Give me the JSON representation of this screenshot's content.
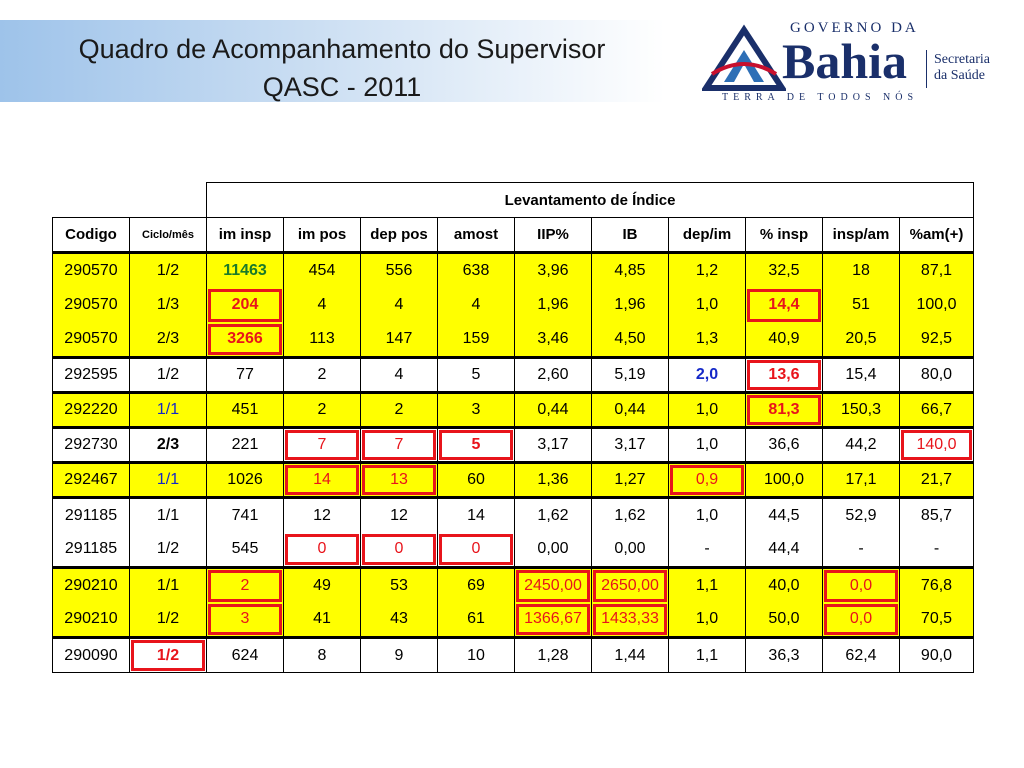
{
  "title": {
    "line1": "Quadro de Acompanhamento do Supervisor",
    "line2": "QASC - 2011"
  },
  "logo": {
    "top_text": "GOVERNO DA",
    "main_text": "Bahia",
    "tagline": "TERRA DE TODOS NÓS",
    "secretaria_line1": "Secretaria",
    "secretaria_line2": "da Saúde",
    "mark_icon": "bahia-triangle-mark-icon",
    "colors": {
      "navy": "#1a2f6a",
      "red": "#c8102e",
      "blue": "#2e6fb6"
    }
  },
  "table": {
    "group_header": "Levantamento de Índice",
    "columns": [
      "Codigo",
      "Ciclo/mês",
      "im insp",
      "im pos",
      "dep pos",
      "amost",
      "IIP%",
      "IB",
      "dep/im",
      "% insp",
      "insp/am",
      "%am(+)"
    ],
    "rows": [
      [
        "290570",
        "1/2",
        "11463",
        "454",
        "556",
        "638",
        "3,96",
        "4,85",
        "1,2",
        "32,5",
        "18",
        "87,1"
      ],
      [
        "290570",
        "1/3",
        "204",
        "4",
        "4",
        "4",
        "1,96",
        "1,96",
        "1,0",
        "14,4",
        "51",
        "100,0"
      ],
      [
        "290570",
        "2/3",
        "3266",
        "113",
        "147",
        "159",
        "3,46",
        "4,50",
        "1,3",
        "40,9",
        "20,5",
        "92,5"
      ],
      [
        "292595",
        "1/2",
        "77",
        "2",
        "4",
        "5",
        "2,60",
        "5,19",
        "2,0",
        "13,6",
        "15,4",
        "80,0"
      ],
      [
        "292220",
        "1/1",
        "451",
        "2",
        "2",
        "3",
        "0,44",
        "0,44",
        "1,0",
        "81,3",
        "150,3",
        "66,7"
      ],
      [
        "292730",
        "2/3",
        "221",
        "7",
        "7",
        "5",
        "3,17",
        "3,17",
        "1,0",
        "36,6",
        "44,2",
        "140,0"
      ],
      [
        "292467",
        "1/1",
        "1026",
        "14",
        "13",
        "60",
        "1,36",
        "1,27",
        "0,9",
        "100,0",
        "17,1",
        "21,7"
      ],
      [
        "291185",
        "1/1",
        "741",
        "12",
        "12",
        "14",
        "1,62",
        "1,62",
        "1,0",
        "44,5",
        "52,9",
        "85,7"
      ],
      [
        "291185",
        "1/2",
        "545",
        "0",
        "0",
        "0",
        "0,00",
        "0,00",
        "-",
        "44,4",
        "-",
        "-"
      ],
      [
        "290210",
        "1/1",
        "2",
        "49",
        "53",
        "69",
        "2450,00",
        "2650,00",
        "1,1",
        "40,0",
        "0,0",
        "76,8"
      ],
      [
        "290210",
        "1/2",
        "3",
        "41",
        "43",
        "61",
        "1366,67",
        "1433,33",
        "1,0",
        "50,0",
        "0,0",
        "70,5"
      ],
      [
        "290090",
        "1/2",
        "624",
        "8",
        "9",
        "10",
        "1,28",
        "1,44",
        "1,1",
        "36,3",
        "62,4",
        "90,0"
      ]
    ]
  },
  "colors": {
    "highlight_yellow": "#ffff00",
    "alert_red": "#e8141b",
    "value_green": "#1a7a2a",
    "value_blue": "#1428c8"
  }
}
